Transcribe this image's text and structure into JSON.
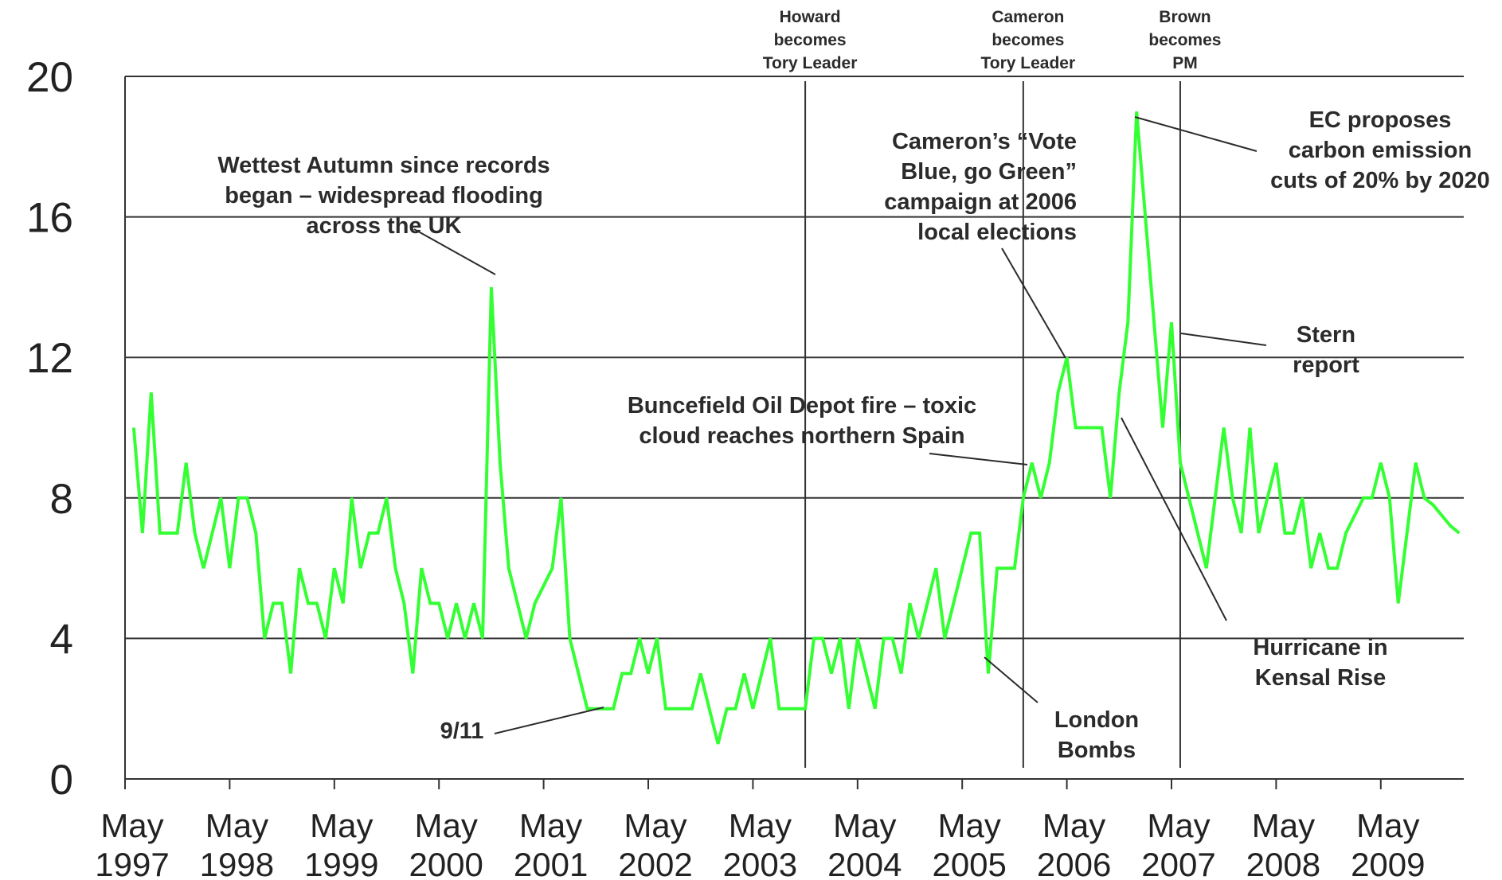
{
  "chart_data": {
    "type": "line",
    "ylim": [
      0,
      20
    ],
    "yticks": [
      "0",
      "4",
      "8",
      "12",
      "16",
      "20"
    ],
    "xticks": [
      {
        "month": "May",
        "year": "1997"
      },
      {
        "month": "May",
        "year": "1998"
      },
      {
        "month": "May",
        "year": "1999"
      },
      {
        "month": "May",
        "year": "2000"
      },
      {
        "month": "May",
        "year": "2001"
      },
      {
        "month": "May",
        "year": "2002"
      },
      {
        "month": "May",
        "year": "2003"
      },
      {
        "month": "May",
        "year": "2004"
      },
      {
        "month": "May",
        "year": "2005"
      },
      {
        "month": "May",
        "year": "2006"
      },
      {
        "month": "May",
        "year": "2007"
      },
      {
        "month": "May",
        "year": "2008"
      },
      {
        "month": "May",
        "year": "2009"
      }
    ],
    "grid": "horizontal",
    "line_color": "#33ff33",
    "series": [
      {
        "x_start": "1997-06",
        "x_step": "month",
        "values": [
          10,
          7,
          11,
          7,
          7,
          7,
          9,
          7,
          6,
          7,
          8,
          6,
          8,
          8,
          7,
          4,
          5,
          5,
          3,
          6,
          5,
          5,
          4,
          6,
          5,
          8,
          6,
          7,
          7,
          8,
          6,
          5,
          3,
          6,
          5,
          5,
          4,
          5,
          4,
          5,
          4,
          14,
          9,
          6,
          5,
          4,
          5,
          5.5,
          6,
          8,
          4,
          3,
          2,
          2,
          2,
          2,
          3,
          3,
          4,
          3,
          4,
          2,
          2,
          2,
          2,
          3,
          2,
          1,
          2,
          2,
          3,
          2,
          3,
          4,
          2,
          2,
          2,
          2,
          4,
          4,
          3,
          4,
          2,
          4,
          3,
          2,
          4,
          4,
          3,
          5,
          4,
          5,
          6,
          4,
          5,
          6,
          7,
          7,
          3,
          6,
          6,
          6,
          8,
          9,
          8,
          9,
          11,
          12,
          10,
          10,
          10,
          10,
          8,
          11,
          13,
          19,
          16,
          13,
          10,
          13,
          9,
          8,
          7,
          6,
          8,
          10,
          8,
          7,
          10,
          7,
          8,
          9,
          7,
          7,
          8,
          6,
          7,
          6,
          6,
          7,
          7.5,
          8,
          8,
          9,
          8,
          5,
          7,
          9,
          8,
          7.8,
          7.5,
          7.2,
          7
        ]
      }
    ],
    "events": [
      {
        "label": [
          "Howard",
          "becomes",
          "Tory Leader"
        ],
        "date": "2003-11"
      },
      {
        "label": [
          "Cameron",
          "becomes",
          "Tory Leader"
        ],
        "date": "2005-12"
      },
      {
        "label": [
          "Brown",
          "becomes",
          "PM"
        ],
        "date": "2007-06"
      }
    ],
    "annotations": [
      {
        "lines": [
          "Wettest Autumn since records",
          "began – widespread flooding",
          "across the UK"
        ]
      },
      {
        "lines": [
          "Cameron’s “Vote",
          "Blue, go Green”",
          "campaign at 2006",
          "local elections"
        ]
      },
      {
        "lines": [
          "EC proposes",
          "carbon emission",
          "cuts of 20% by 2020"
        ]
      },
      {
        "lines": [
          "Stern",
          "report"
        ]
      },
      {
        "lines": [
          "Buncefield Oil Depot fire – toxic",
          "cloud reaches northern Spain"
        ]
      },
      {
        "lines": [
          "Hurricane in",
          "Kensal Rise"
        ]
      },
      {
        "lines": [
          "London",
          "Bombs"
        ]
      },
      {
        "lines": [
          "9/11"
        ]
      }
    ]
  }
}
